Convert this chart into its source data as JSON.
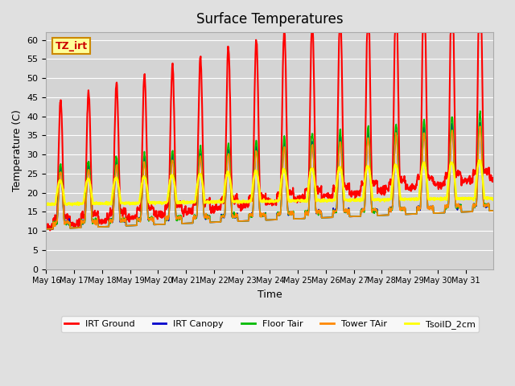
{
  "title": "Surface Temperatures",
  "xlabel": "Time",
  "ylabel": "Temperature (C)",
  "ylim": [
    0,
    62
  ],
  "yticks": [
    0,
    5,
    10,
    15,
    20,
    25,
    30,
    35,
    40,
    45,
    50,
    55,
    60
  ],
  "xtick_labels": [
    "May 16",
    "May 17",
    "May 18",
    "May 19",
    "May 20",
    "May 21",
    "May 22",
    "May 23",
    "May 24",
    "May 25",
    "May 26",
    "May 27",
    "May 28",
    "May 29",
    "May 30",
    "May 31"
  ],
  "bg_color": "#e0e0e0",
  "plot_bg_color": "#d4d4d4",
  "grid_color": "#ffffff",
  "series": {
    "IRT Ground": {
      "color": "#ff0000",
      "lw": 1.5
    },
    "IRT Canopy": {
      "color": "#0000cc",
      "lw": 1.2
    },
    "Floor Tair": {
      "color": "#00bb00",
      "lw": 1.2
    },
    "Tower TAir": {
      "color": "#ff8800",
      "lw": 1.2
    },
    "TsoilD_2cm": {
      "color": "#ffff00",
      "lw": 1.8
    }
  },
  "annotation_text": "TZ_irt",
  "annotation_color": "#cc0000",
  "annotation_bg": "#ffff99",
  "annotation_border": "#cc8800"
}
